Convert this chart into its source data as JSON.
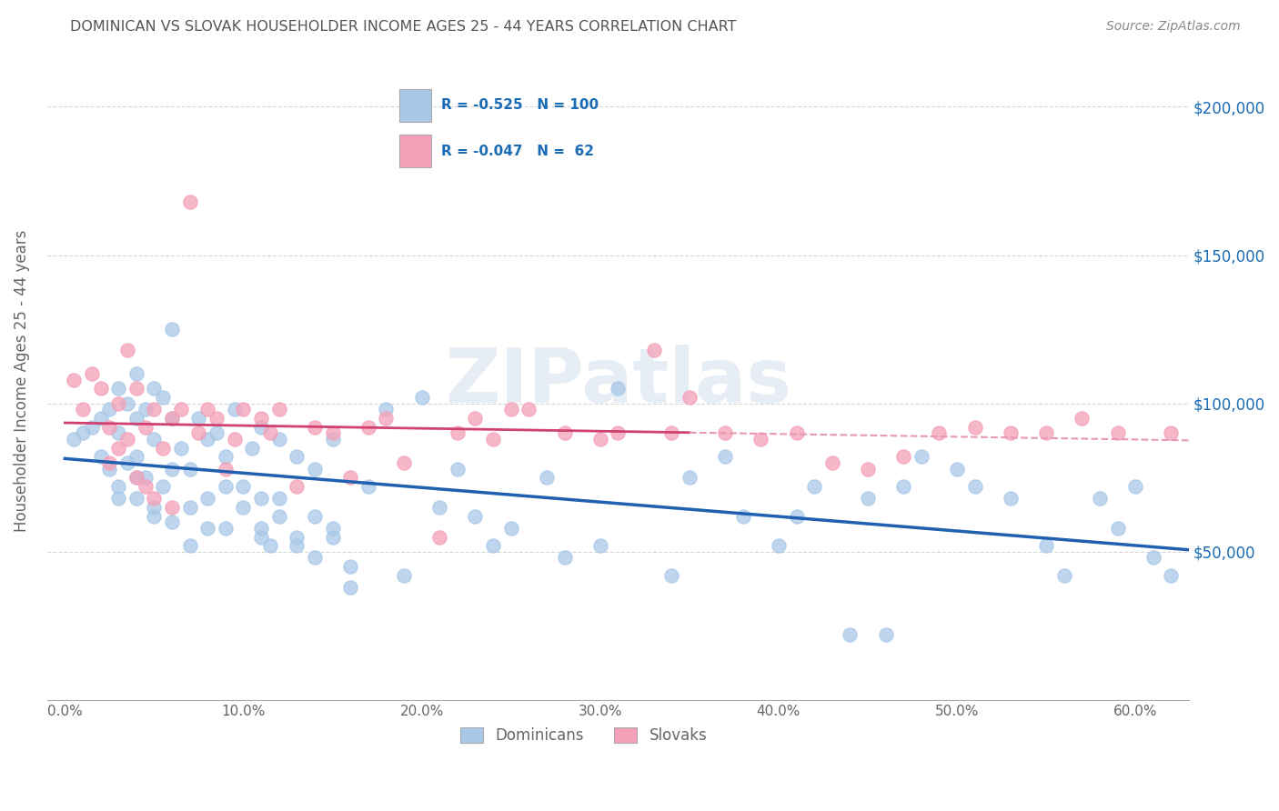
{
  "title": "DOMINICAN VS SLOVAK HOUSEHOLDER INCOME AGES 25 - 44 YEARS CORRELATION CHART",
  "source": "Source: ZipAtlas.com",
  "ylabel": "Householder Income Ages 25 - 44 years",
  "ytick_labels": [
    "$50,000",
    "$100,000",
    "$150,000",
    "$200,000"
  ],
  "ytick_vals": [
    50000,
    100000,
    150000,
    200000
  ],
  "xlabel_ticks": [
    "0.0%",
    "10.0%",
    "20.0%",
    "30.0%",
    "40.0%",
    "50.0%",
    "60.0%"
  ],
  "xlabel_vals": [
    0,
    10,
    20,
    30,
    40,
    50,
    60
  ],
  "ylim": [
    0,
    215000
  ],
  "xlim": [
    -1,
    63
  ],
  "blue_color": "#a8c8e8",
  "pink_color": "#f4a0b8",
  "blue_line_color": "#2060b0",
  "pink_line_color": "#d04070",
  "pink_dash_color": "#e898b0",
  "legend_text_color": "#1a6bb5",
  "title_color": "#555555",
  "source_color": "#888888",
  "axis_label_color": "#666666",
  "tick_color": "#666666",
  "grid_color": "#cccccc",
  "r_blue": -0.525,
  "n_blue": 100,
  "r_pink": -0.047,
  "n_pink": 62,
  "dominicans_x": [
    0.5,
    1.0,
    1.5,
    2.0,
    2.0,
    2.5,
    2.5,
    3.0,
    3.0,
    3.0,
    3.5,
    3.5,
    4.0,
    4.0,
    4.0,
    4.0,
    4.5,
    4.5,
    5.0,
    5.0,
    5.0,
    5.5,
    5.5,
    6.0,
    6.0,
    6.0,
    6.5,
    7.0,
    7.0,
    7.5,
    8.0,
    8.0,
    8.5,
    9.0,
    9.0,
    9.5,
    10.0,
    10.5,
    11.0,
    11.0,
    11.0,
    11.5,
    12.0,
    12.0,
    13.0,
    13.0,
    14.0,
    14.0,
    15.0,
    15.0,
    16.0,
    17.0,
    18.0,
    19.0,
    20.0,
    21.0,
    22.0,
    23.0,
    24.0,
    25.0,
    27.0,
    28.0,
    30.0,
    31.0,
    34.0,
    35.0,
    37.0,
    38.0,
    40.0,
    41.0,
    42.0,
    44.0,
    45.0,
    46.0,
    47.0,
    48.0,
    50.0,
    51.0,
    53.0,
    55.0,
    56.0,
    58.0,
    59.0,
    60.0,
    61.0,
    62.0,
    3.0,
    4.0,
    5.0,
    6.0,
    7.0,
    8.0,
    9.0,
    10.0,
    11.0,
    12.0,
    13.0,
    14.0,
    15.0,
    16.0
  ],
  "dominicans_y": [
    88000,
    90000,
    92000,
    95000,
    82000,
    98000,
    78000,
    105000,
    90000,
    72000,
    100000,
    80000,
    110000,
    95000,
    82000,
    68000,
    98000,
    75000,
    105000,
    88000,
    65000,
    102000,
    72000,
    125000,
    95000,
    60000,
    85000,
    78000,
    52000,
    95000,
    88000,
    68000,
    90000,
    82000,
    58000,
    98000,
    72000,
    85000,
    92000,
    68000,
    55000,
    52000,
    88000,
    62000,
    82000,
    52000,
    78000,
    48000,
    88000,
    58000,
    38000,
    72000,
    98000,
    42000,
    102000,
    65000,
    78000,
    62000,
    52000,
    58000,
    75000,
    48000,
    52000,
    105000,
    42000,
    75000,
    82000,
    62000,
    52000,
    62000,
    72000,
    22000,
    68000,
    22000,
    72000,
    82000,
    78000,
    72000,
    68000,
    52000,
    42000,
    68000,
    58000,
    72000,
    48000,
    42000,
    68000,
    75000,
    62000,
    78000,
    65000,
    58000,
    72000,
    65000,
    58000,
    68000,
    55000,
    62000,
    55000,
    45000
  ],
  "slovaks_x": [
    0.5,
    1.0,
    1.5,
    2.0,
    2.5,
    2.5,
    3.0,
    3.0,
    3.5,
    3.5,
    4.0,
    4.0,
    4.5,
    4.5,
    5.0,
    5.0,
    5.5,
    6.0,
    6.0,
    6.5,
    7.0,
    7.5,
    8.0,
    8.5,
    9.0,
    9.5,
    10.0,
    11.0,
    11.5,
    12.0,
    13.0,
    14.0,
    15.0,
    16.0,
    17.0,
    18.0,
    19.0,
    21.0,
    22.0,
    23.0,
    24.0,
    25.0,
    26.0,
    28.0,
    30.0,
    31.0,
    33.0,
    34.0,
    35.0,
    37.0,
    39.0,
    41.0,
    43.0,
    45.0,
    47.0,
    49.0,
    51.0,
    53.0,
    55.0,
    57.0,
    59.0,
    62.0
  ],
  "slovaks_y": [
    108000,
    98000,
    110000,
    105000,
    92000,
    80000,
    100000,
    85000,
    118000,
    88000,
    105000,
    75000,
    92000,
    72000,
    98000,
    68000,
    85000,
    95000,
    65000,
    98000,
    168000,
    90000,
    98000,
    95000,
    78000,
    88000,
    98000,
    95000,
    90000,
    98000,
    72000,
    92000,
    90000,
    75000,
    92000,
    95000,
    80000,
    55000,
    90000,
    95000,
    88000,
    98000,
    98000,
    90000,
    88000,
    90000,
    118000,
    90000,
    102000,
    90000,
    88000,
    90000,
    80000,
    78000,
    82000,
    90000,
    92000,
    90000,
    90000,
    95000,
    90000,
    90000
  ]
}
